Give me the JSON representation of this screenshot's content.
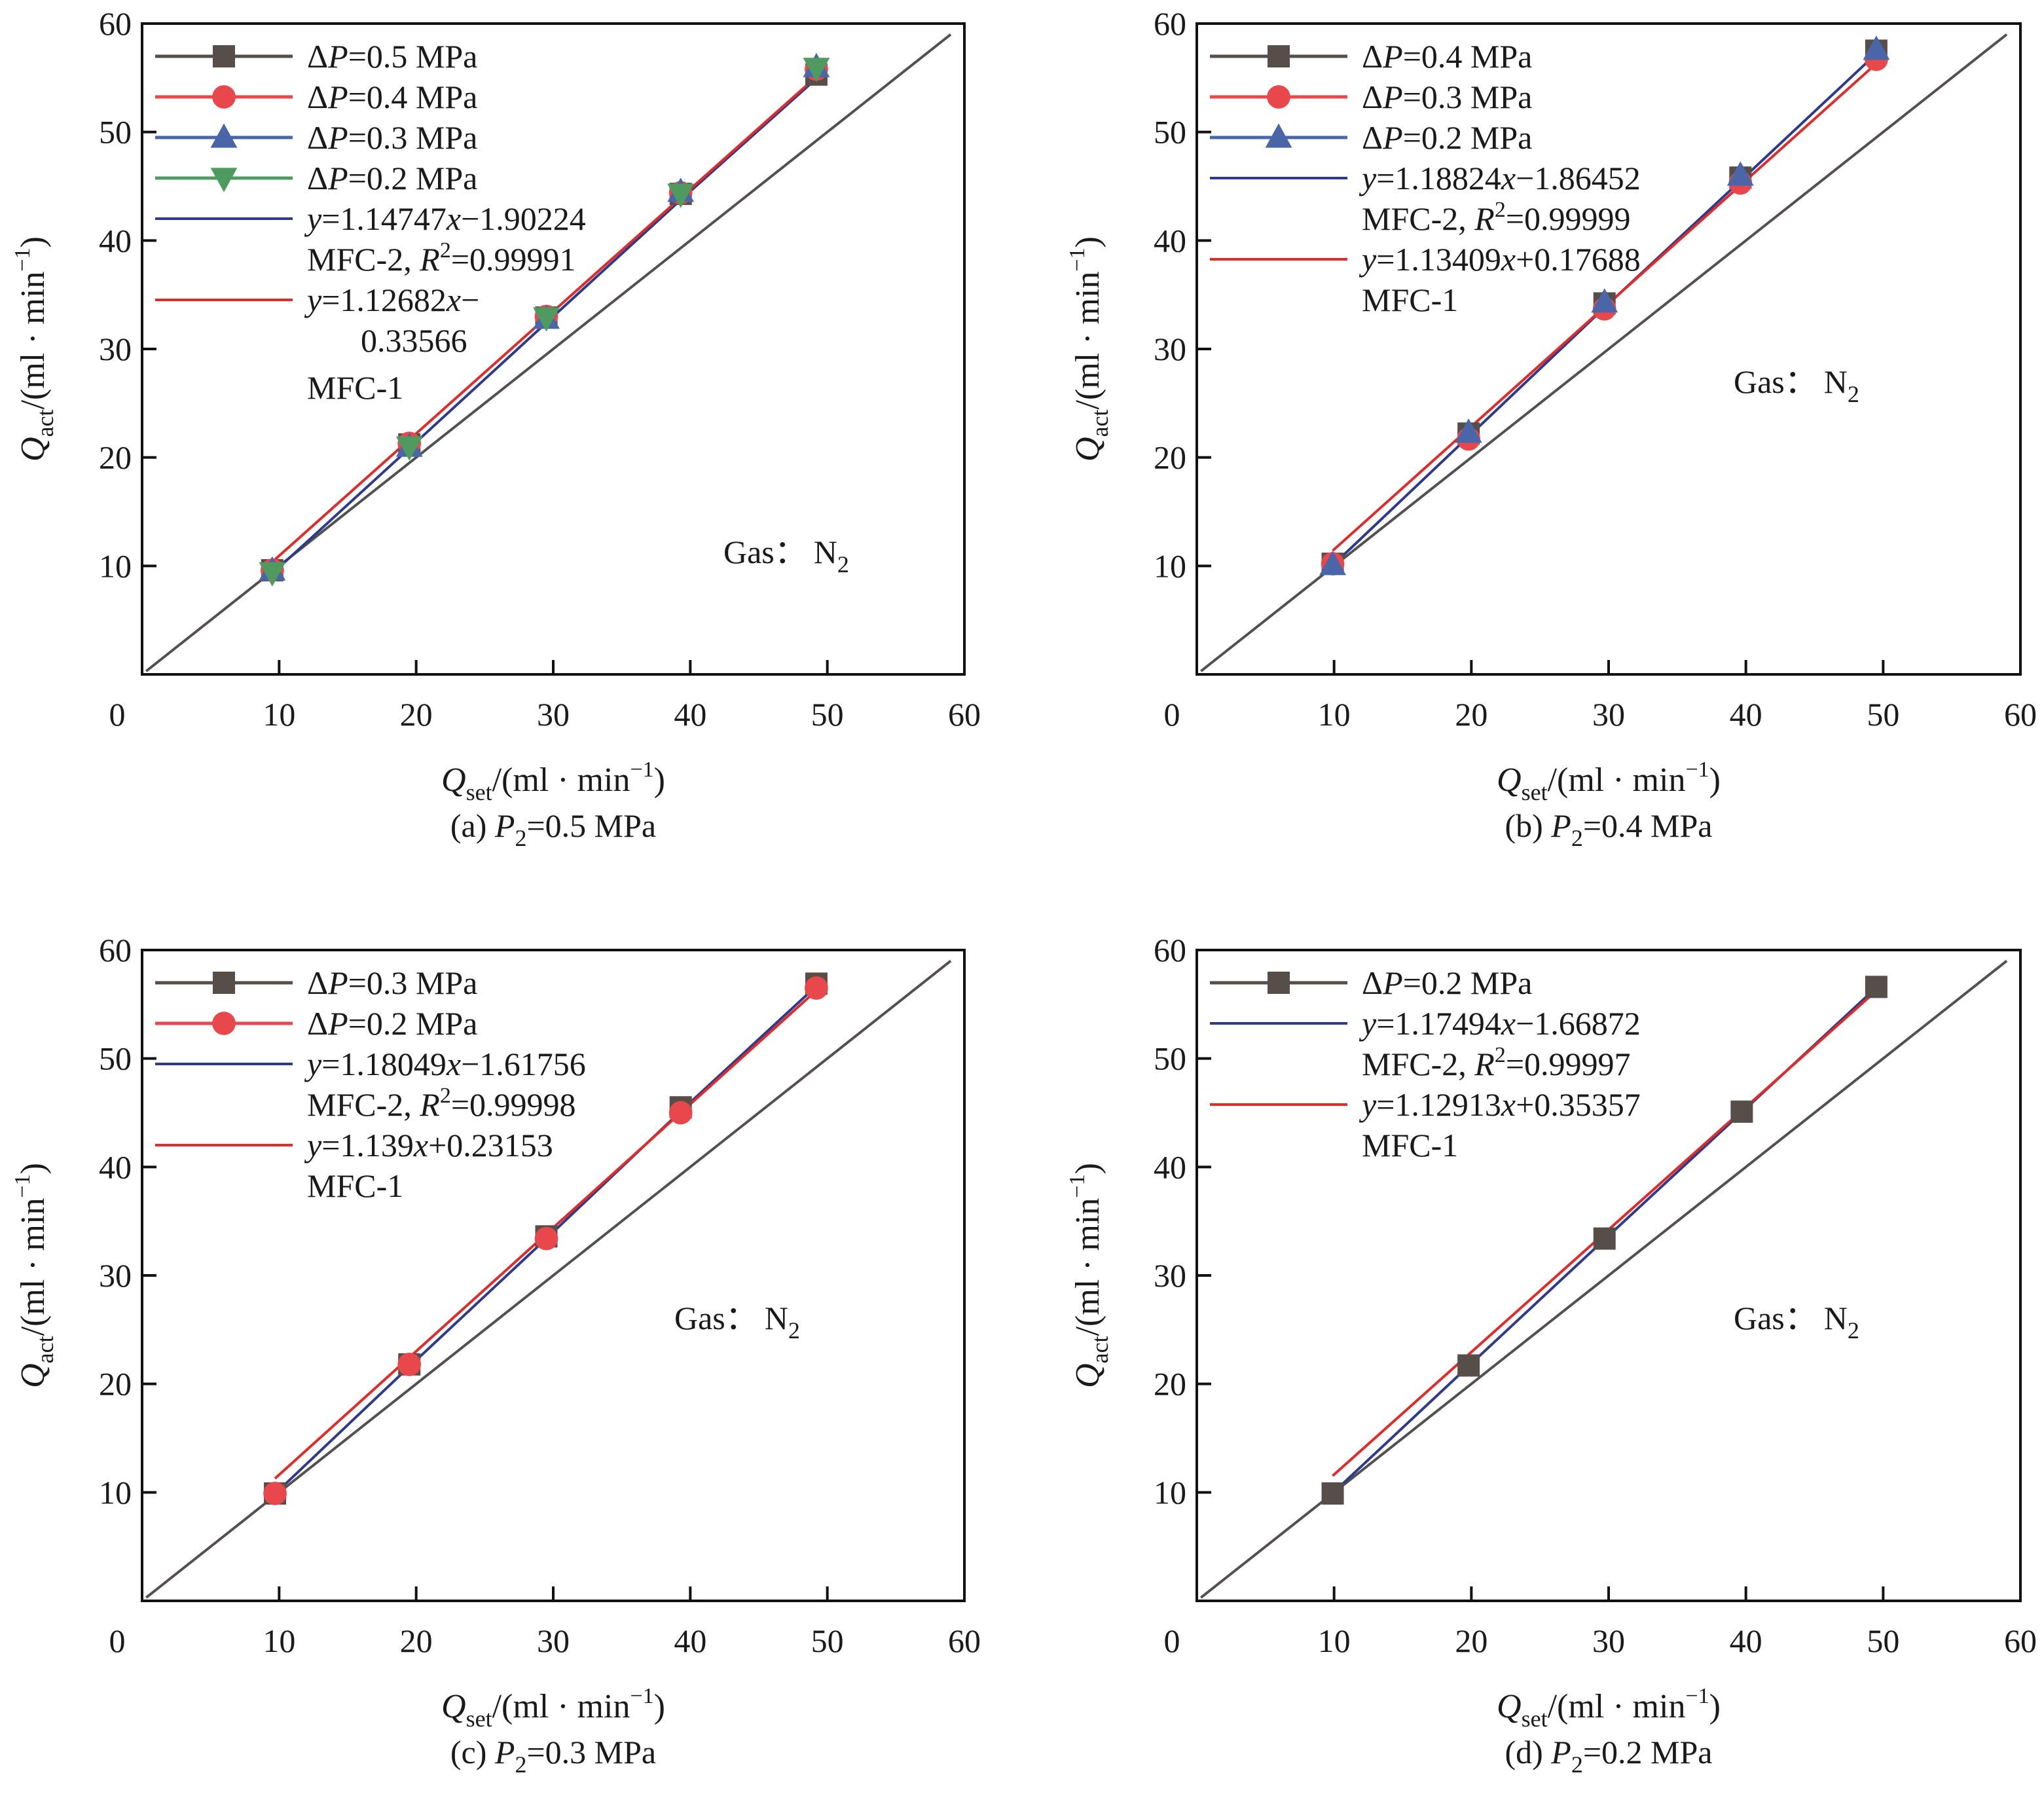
{
  "figure": {
    "annotation_gas": "Gas：",
    "annotation_species": "N",
    "annotation_species_sub": "2"
  },
  "colors": {
    "square": "#574e49",
    "circle": "#e8474b",
    "triangle_up": "#4a66a8",
    "triangle_down": "#4e9a5f",
    "fit_mfc2": "#2e3a8c",
    "fit_mfc1": "#e02b2b",
    "reference": "#555050"
  },
  "chart_data": [
    {
      "id": "a",
      "type": "scatter",
      "title": "(a) P2=0.5 MPa",
      "caption_prefix": "(a) ",
      "caption_var": "P",
      "caption_sub": "2",
      "caption_suffix": "=0.5 MPa",
      "xlabel": "Qset/(ml · min−1)",
      "ylabel": "Qact/(ml · min−1)",
      "xlim": [
        0,
        60
      ],
      "ylim": [
        0,
        60
      ],
      "xticks": [
        0,
        10,
        20,
        30,
        40,
        50,
        60
      ],
      "yticks": [
        10,
        20,
        30,
        40,
        50,
        60
      ],
      "grid": false,
      "legend_position": "top-left",
      "series": [
        {
          "name": "ΔP=0.5 MPa",
          "var": "P",
          "prefix": "Δ",
          "suffix": "=0.5 MPa",
          "marker": "square",
          "x": [
            9.5,
            19.5,
            29.5,
            39.3,
            49.2
          ],
          "y": [
            9.6,
            21.2,
            32.9,
            44.3,
            55.3
          ]
        },
        {
          "name": "ΔP=0.4 MPa",
          "var": "P",
          "prefix": "Δ",
          "suffix": "=0.4 MPa",
          "marker": "circle",
          "x": [
            9.5,
            19.5,
            29.5,
            39.3,
            49.2
          ],
          "y": [
            9.6,
            21.3,
            33.0,
            44.4,
            55.8
          ]
        },
        {
          "name": "ΔP=0.3 MPa",
          "var": "P",
          "prefix": "Δ",
          "suffix": "=0.3 MPa",
          "marker": "triangle_up",
          "x": [
            9.5,
            19.5,
            29.5,
            39.3,
            49.2
          ],
          "y": [
            9.6,
            21.0,
            32.8,
            44.5,
            56.0
          ]
        },
        {
          "name": "ΔP=0.2 MPa",
          "var": "P",
          "prefix": "Δ",
          "suffix": "=0.2 MPa",
          "marker": "triangle_down",
          "x": [
            9.5,
            19.5,
            29.5,
            39.3,
            49.2
          ],
          "y": [
            9.4,
            21.0,
            32.9,
            44.3,
            55.9
          ]
        }
      ],
      "fits": [
        {
          "name": "MFC-2",
          "equation": "y=1.14747x−1.90224",
          "slope": 1.14747,
          "intercept": -1.90224,
          "r2_label": "MFC-2, R2=0.99991",
          "r2": 0.99991,
          "color_key": "fit_mfc2",
          "x_range": [
            9.5,
            49.2
          ],
          "legend_lines": [
            "y=1.14747x−1.90224",
            "MFC-2, R²=0.99991"
          ]
        },
        {
          "name": "MFC-1",
          "equation": "y=1.12682x−0.33566",
          "slope": 1.12682,
          "intercept": -0.33566,
          "color_key": "fit_mfc1",
          "x_range": [
            9.5,
            49.2
          ],
          "legend_lines": [
            "y=1.12682x−",
            "0.33566",
            "MFC-1"
          ]
        }
      ],
      "legend_text": {
        "fit2_eq": "=1.14747",
        "fit2_eq_tail": "−1.90224",
        "fit2_r2_prefix": "MFC-2, ",
        "fit2_r2_var": "R",
        "fit2_r2_sup": "2",
        "fit2_r2_value": "=0.99991",
        "fit1_eq": "=1.12682",
        "fit1_eq_tail": "−",
        "fit1_eq_cont": "0.33566",
        "fit1_label": "MFC-1"
      }
    },
    {
      "id": "b",
      "type": "scatter",
      "title": "(b) P2=0.4 MPa",
      "caption_prefix": "(b) ",
      "caption_var": "P",
      "caption_sub": "2",
      "caption_suffix": "=0.4 MPa",
      "xlabel": "Qset/(ml · min−1)",
      "ylabel": "Qact/(ml · min−1)",
      "xlim": [
        0,
        60
      ],
      "ylim": [
        0,
        60
      ],
      "xticks": [
        0,
        10,
        20,
        30,
        40,
        50,
        60
      ],
      "yticks": [
        10,
        20,
        30,
        40,
        50,
        60
      ],
      "grid": false,
      "legend_position": "top-left",
      "series": [
        {
          "name": "ΔP=0.4 MPa",
          "var": "P",
          "prefix": "Δ",
          "suffix": "=0.4 MPa",
          "marker": "square",
          "x": [
            9.9,
            19.8,
            29.7,
            39.6,
            49.5
          ],
          "y": [
            10.2,
            22.2,
            34.2,
            45.8,
            57.5
          ]
        },
        {
          "name": "ΔP=0.3 MPa",
          "var": "P",
          "prefix": "Δ",
          "suffix": "=0.3 MPa",
          "marker": "circle",
          "x": [
            9.9,
            19.8,
            29.7,
            39.6,
            49.5
          ],
          "y": [
            10.2,
            21.7,
            33.7,
            45.3,
            56.7
          ]
        },
        {
          "name": "ΔP=0.2 MPa",
          "var": "P",
          "prefix": "Δ",
          "suffix": "=0.2 MPa",
          "marker": "triangle_up",
          "x": [
            9.9,
            19.8,
            29.7,
            39.6,
            49.5
          ],
          "y": [
            10.1,
            22.3,
            34.3,
            46.0,
            57.6
          ]
        }
      ],
      "fits": [
        {
          "name": "MFC-2",
          "equation": "y=1.18824x−1.86452",
          "slope": 1.18824,
          "intercept": -1.86452,
          "r2": 0.99999,
          "color_key": "fit_mfc2",
          "x_range": [
            9.9,
            49.5
          ]
        },
        {
          "name": "MFC-1",
          "equation": "y=1.13409x+0.17688",
          "slope": 1.13409,
          "intercept": 0.17688,
          "color_key": "fit_mfc1",
          "x_range": [
            9.9,
            49.5
          ]
        }
      ],
      "legend_text": {
        "fit2_eq": "=1.18824",
        "fit2_eq_tail": "−1.86452",
        "fit2_r2_prefix": "MFC-2, ",
        "fit2_r2_var": "R",
        "fit2_r2_sup": "2",
        "fit2_r2_value": "=0.99999",
        "fit1_eq": "=1.13409",
        "fit1_eq_tail": "+0.17688",
        "fit1_eq_cont": "",
        "fit1_label": "MFC-1"
      }
    },
    {
      "id": "c",
      "type": "scatter",
      "title": "(c) P2=0.3 MPa",
      "caption_prefix": "(c) ",
      "caption_var": "P",
      "caption_sub": "2",
      "caption_suffix": "=0.3 MPa",
      "xlabel": "Qset/(ml · min−1)",
      "ylabel": "Qact/(ml · min−1)",
      "xlim": [
        0,
        60
      ],
      "ylim": [
        0,
        60
      ],
      "xticks": [
        0,
        10,
        20,
        30,
        40,
        50,
        60
      ],
      "yticks": [
        10,
        20,
        30,
        40,
        50,
        60
      ],
      "grid": false,
      "legend_position": "top-left",
      "series": [
        {
          "name": "ΔP=0.3 MPa",
          "var": "P",
          "prefix": "Δ",
          "suffix": "=0.3 MPa",
          "marker": "square",
          "x": [
            9.7,
            19.5,
            29.5,
            39.3,
            49.2
          ],
          "y": [
            9.9,
            21.8,
            33.6,
            45.5,
            56.9
          ]
        },
        {
          "name": "ΔP=0.2 MPa",
          "var": "P",
          "prefix": "Δ",
          "suffix": "=0.2 MPa",
          "marker": "circle",
          "x": [
            9.7,
            19.5,
            29.5,
            39.3,
            49.2
          ],
          "y": [
            9.9,
            21.8,
            33.4,
            45.0,
            56.5
          ]
        }
      ],
      "fits": [
        {
          "name": "MFC-2",
          "equation": "y=1.18049x−1.61756",
          "slope": 1.18049,
          "intercept": -1.61756,
          "r2": 0.99998,
          "color_key": "fit_mfc2",
          "x_range": [
            9.7,
            49.2
          ]
        },
        {
          "name": "MFC-1",
          "equation": "y=1.139x+0.23153",
          "slope": 1.139,
          "intercept": 0.23153,
          "color_key": "fit_mfc1",
          "x_range": [
            9.7,
            49.2
          ]
        }
      ],
      "legend_text": {
        "fit2_eq": "=1.18049",
        "fit2_eq_tail": "−1.61756",
        "fit2_r2_prefix": "MFC-2, ",
        "fit2_r2_var": "R",
        "fit2_r2_sup": "2",
        "fit2_r2_value": "=0.99998",
        "fit1_eq": "=1.139",
        "fit1_eq_tail": "+0.23153",
        "fit1_eq_cont": "",
        "fit1_label": "MFC-1"
      }
    },
    {
      "id": "d",
      "type": "scatter",
      "title": "(d) P2=0.2 MPa",
      "caption_prefix": "(d) ",
      "caption_var": "P",
      "caption_sub": "2",
      "caption_suffix": "=0.2 MPa",
      "xlabel": "Qset/(ml · min−1)",
      "ylabel": "Qact/(ml · min−1)",
      "xlim": [
        0,
        60
      ],
      "ylim": [
        0,
        60
      ],
      "xticks": [
        0,
        10,
        20,
        30,
        40,
        50,
        60
      ],
      "yticks": [
        10,
        20,
        30,
        40,
        50,
        60
      ],
      "grid": false,
      "legend_position": "top-left",
      "series": [
        {
          "name": "ΔP=0.2 MPa",
          "var": "P",
          "prefix": "Δ",
          "suffix": "=0.2 MPa",
          "marker": "square",
          "x": [
            9.9,
            19.8,
            29.7,
            39.7,
            49.5
          ],
          "y": [
            9.9,
            21.7,
            33.4,
            45.1,
            56.6
          ]
        }
      ],
      "fits": [
        {
          "name": "MFC-2",
          "equation": "y=1.17494x−1.66872",
          "slope": 1.17494,
          "intercept": -1.66872,
          "r2": 0.99997,
          "color_key": "fit_mfc2",
          "x_range": [
            9.9,
            49.5
          ]
        },
        {
          "name": "MFC-1",
          "equation": "y=1.12913x+0.35357",
          "slope": 1.12913,
          "intercept": 0.35357,
          "color_key": "fit_mfc1",
          "x_range": [
            9.9,
            49.5
          ]
        }
      ],
      "legend_text": {
        "fit2_eq": "=1.17494",
        "fit2_eq_tail": "−1.66872",
        "fit2_r2_prefix": "MFC-2, ",
        "fit2_r2_var": "R",
        "fit2_r2_sup": "2",
        "fit2_r2_value": "=0.99997",
        "fit1_eq": "=1.12913",
        "fit1_eq_tail": "+0.35357",
        "fit1_eq_cont": "",
        "fit1_label": "MFC-1"
      }
    }
  ],
  "axis_text": {
    "q": "Q",
    "x_sub": "set",
    "y_sub": "act",
    "unit_open": "/(ml · min",
    "unit_sup": "−1",
    "unit_close": ")"
  }
}
